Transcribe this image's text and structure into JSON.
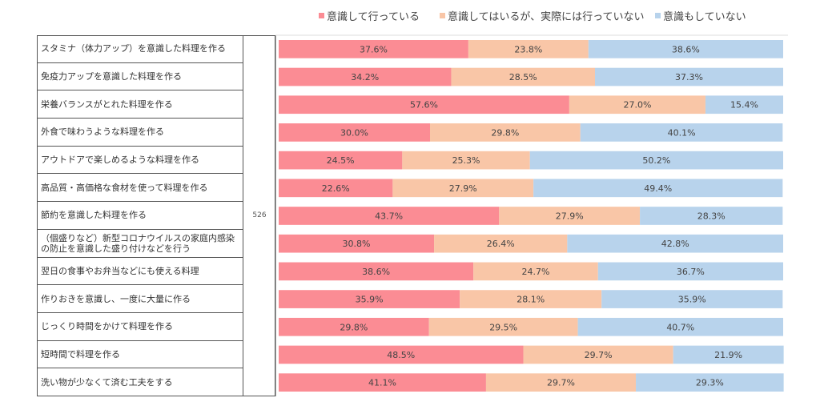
{
  "legend": [
    {
      "label": "意識して行っている",
      "color": "#fb8c94"
    },
    {
      "label": "意識してはいるが、実際には行っていない",
      "color": "#f9c6a7"
    },
    {
      "label": "意識もしていない",
      "color": "#b8d3ec"
    }
  ],
  "n_value": "526",
  "chart_data": {
    "type": "bar",
    "orientation": "horizontal",
    "stacked": true,
    "percent_stacked": true,
    "categories": [
      "スタミナ（体力アップ）を意識した料理を作る",
      "免疫力アップを意識した料理を作る",
      "栄養バランスがとれた料理を作る",
      "外食で味わうような料理を作る",
      "アウトドアで楽しめるような料理を作る",
      "高品質・高価格な食材を使って料理を作る",
      "節約を意識した料理を作る",
      "（個盛りなど）新型コロナウイルスの家庭内感染の防止を意識した盛り付けなどを行う",
      "翌日の食事やお弁当などにも使える料理",
      "作りおきを意識し、一度に大量に作る",
      "じっくり時間をかけて料理を作る",
      "短時間で料理を作る",
      "洗い物が少なくて済む工夫をする"
    ],
    "series": [
      {
        "name": "意識して行っている",
        "color": "#fb8c94",
        "values": [
          37.6,
          34.2,
          57.6,
          30.0,
          24.5,
          22.6,
          43.7,
          30.8,
          38.6,
          35.9,
          29.8,
          48.5,
          41.1
        ]
      },
      {
        "name": "意識してはいるが、実際には行っていない",
        "color": "#f9c6a7",
        "values": [
          23.8,
          28.5,
          27.0,
          29.8,
          25.3,
          27.9,
          27.9,
          26.4,
          24.7,
          28.1,
          29.5,
          29.7,
          29.7
        ]
      },
      {
        "name": "意識もしていない",
        "color": "#b8d3ec",
        "values": [
          38.6,
          37.3,
          15.4,
          40.1,
          50.2,
          49.4,
          28.3,
          42.8,
          36.7,
          35.9,
          40.7,
          21.9,
          29.3
        ]
      }
    ],
    "xlim": [
      0,
      100
    ],
    "value_suffix": "%",
    "grid": false,
    "legend_position": "top"
  }
}
